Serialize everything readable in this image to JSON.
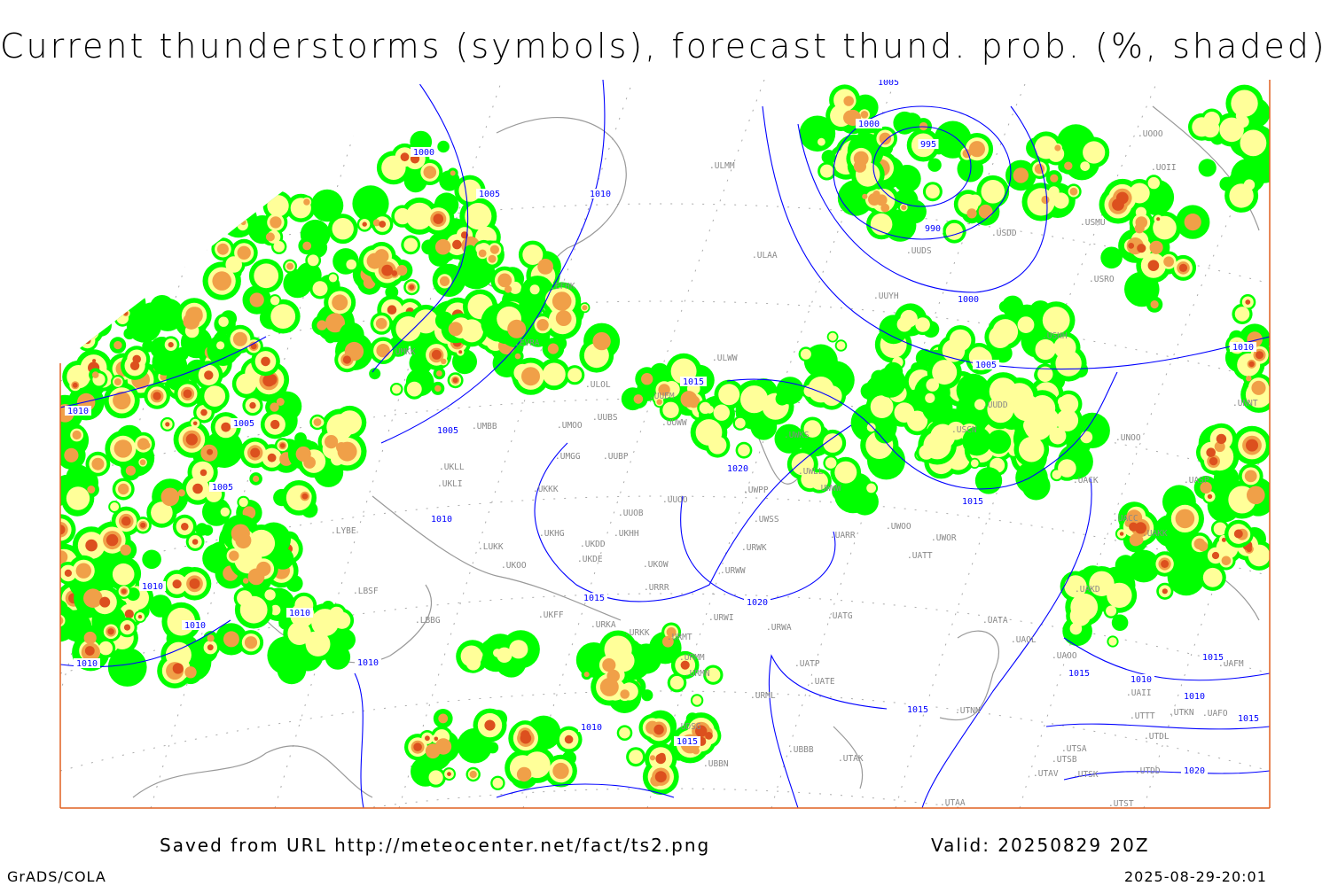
{
  "title": "Current thunderstorms (symbols), forecast thund. prob. (%, shaded)",
  "footer": {
    "saved_from": "Saved from URL http://meteocenter.net/fact/ts2.png",
    "valid": "Valid: 20250829 20Z",
    "software": "GrADS/COLA",
    "timestamp": "2025-08-29-20:01"
  },
  "colors": {
    "prob_low": "#00ff00",
    "prob_mid": "#ffff99",
    "prob_high": "#f0a048",
    "prob_max": "#dc501e",
    "isobar": "#0000ff",
    "coast": "#999999",
    "station": "#888888",
    "frame": "#e06020"
  },
  "isobar_labels": [
    "1005",
    "1000",
    "1005",
    "1010",
    "995",
    "1000",
    "990",
    "1000",
    "1010",
    "1005",
    "1010",
    "1015",
    "1005",
    "1005",
    "1005",
    "1020",
    "1010",
    "1010",
    "1015",
    "1015",
    "1020",
    "1010",
    "1010",
    "1010",
    "1010",
    "1015",
    "1015",
    "1010",
    "1010",
    "1015",
    "1010",
    "1015",
    "1020",
    "1015"
  ],
  "stations": [
    "ULMM",
    "ULAA",
    "UUYH",
    "UUDS",
    "USDD",
    "USMU",
    "UOII",
    "UOOO",
    "USRO",
    "USHH",
    "ULWW",
    "ULOL",
    "UUEM",
    "UUWW",
    "UMBB",
    "UMOO",
    "UUBS",
    "UMGG",
    "UUBP",
    "UKLL",
    "UKLI",
    "UKKK",
    "UUOO",
    "UUOB",
    "UKHG",
    "UKDD",
    "UKHH",
    "UKDE",
    "LUKK",
    "UKOO",
    "UKOW",
    "URRR",
    "UWSS",
    "UARR",
    "UWPP",
    "UWWW",
    "UWLL",
    "URWK",
    "URWW",
    "UWOO",
    "UWOR",
    "UATT",
    "UACK",
    "UASP",
    "UACC",
    "UAKK",
    "UAKD",
    "UATA",
    "UAOL",
    "UAOO",
    "UTNN",
    "UTSA",
    "UTSB",
    "UTAV",
    "UTAA",
    "UNOO",
    "UNNT",
    "UWKS",
    "USCN",
    "URWI",
    "UATG",
    "URWA",
    "UATP",
    "UATE",
    "URMT",
    "URMM",
    "URKK",
    "URKA",
    "UKFF",
    "LYBE",
    "LBSF",
    "LBBG",
    "UUDD",
    "UTSK",
    "UTDD",
    "UTDL",
    "UTKN",
    "UAFO",
    "UAFM",
    "UAII",
    "UTTT",
    "UTST",
    "UBBB",
    "UTAK",
    "UBBN",
    "UDSG",
    "EVRA",
    "UMKK",
    "EFHK",
    "URML",
    "URMN"
  ]
}
